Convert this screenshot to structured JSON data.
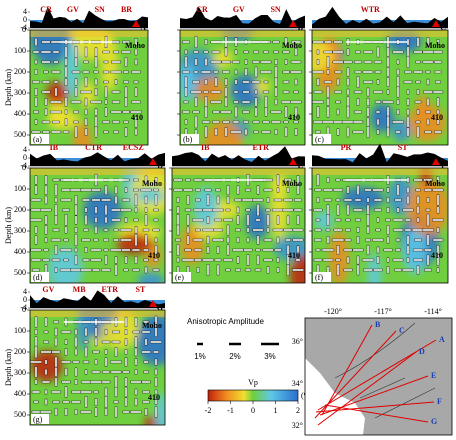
{
  "depth_axis": {
    "label": "Depth (km)",
    "ticks": [
      0,
      100,
      200,
      300,
      400,
      500
    ]
  },
  "topo_axis": {
    "ticks": [
      4,
      0,
      -4
    ]
  },
  "panels": [
    {
      "tag": "(a)",
      "end": "A",
      "places": [
        "CR",
        "GV",
        "SN",
        "BR"
      ],
      "moho": "Moho",
      "d410": "410"
    },
    {
      "tag": "(b)",
      "end": "B",
      "places": [
        "CR",
        "GV",
        "SN"
      ],
      "moho": "Moho",
      "d410": "410"
    },
    {
      "tag": "(c)",
      "end": "C",
      "places": [
        "WTR"
      ],
      "moho": "Moho",
      "d410": "410"
    },
    {
      "tag": "(d)",
      "end": "D",
      "places": [
        "IB",
        "CTR",
        "ECSZ"
      ],
      "moho": "Moho",
      "d410": "410"
    },
    {
      "tag": "(e)",
      "end": "E",
      "places": [
        "IB",
        "ETR"
      ],
      "moho": "Moho",
      "d410": "410"
    },
    {
      "tag": "(f)",
      "end": "F",
      "places": [
        "PR",
        "ST"
      ],
      "moho": "Moho",
      "d410": "410"
    },
    {
      "tag": "(g)",
      "end": "G",
      "places": [
        "GV",
        "MB",
        "ETR",
        "ST"
      ],
      "moho": "Moho",
      "d410": "410"
    }
  ],
  "legend": {
    "title": "Anisotropic Amplitude",
    "items": [
      "1%",
      "2%",
      "3%"
    ]
  },
  "colorbar": {
    "label": "Vp",
    "ticks": [
      -2,
      -1,
      0,
      1,
      2
    ],
    "unit": "(%)"
  },
  "map": {
    "lon_ticks": [
      "-120°",
      "-117°",
      "-114°"
    ],
    "lat_ticks": [
      "36°",
      "34°",
      "32°"
    ],
    "lines": [
      "A",
      "B",
      "C",
      "D",
      "E",
      "F",
      "G"
    ]
  }
}
